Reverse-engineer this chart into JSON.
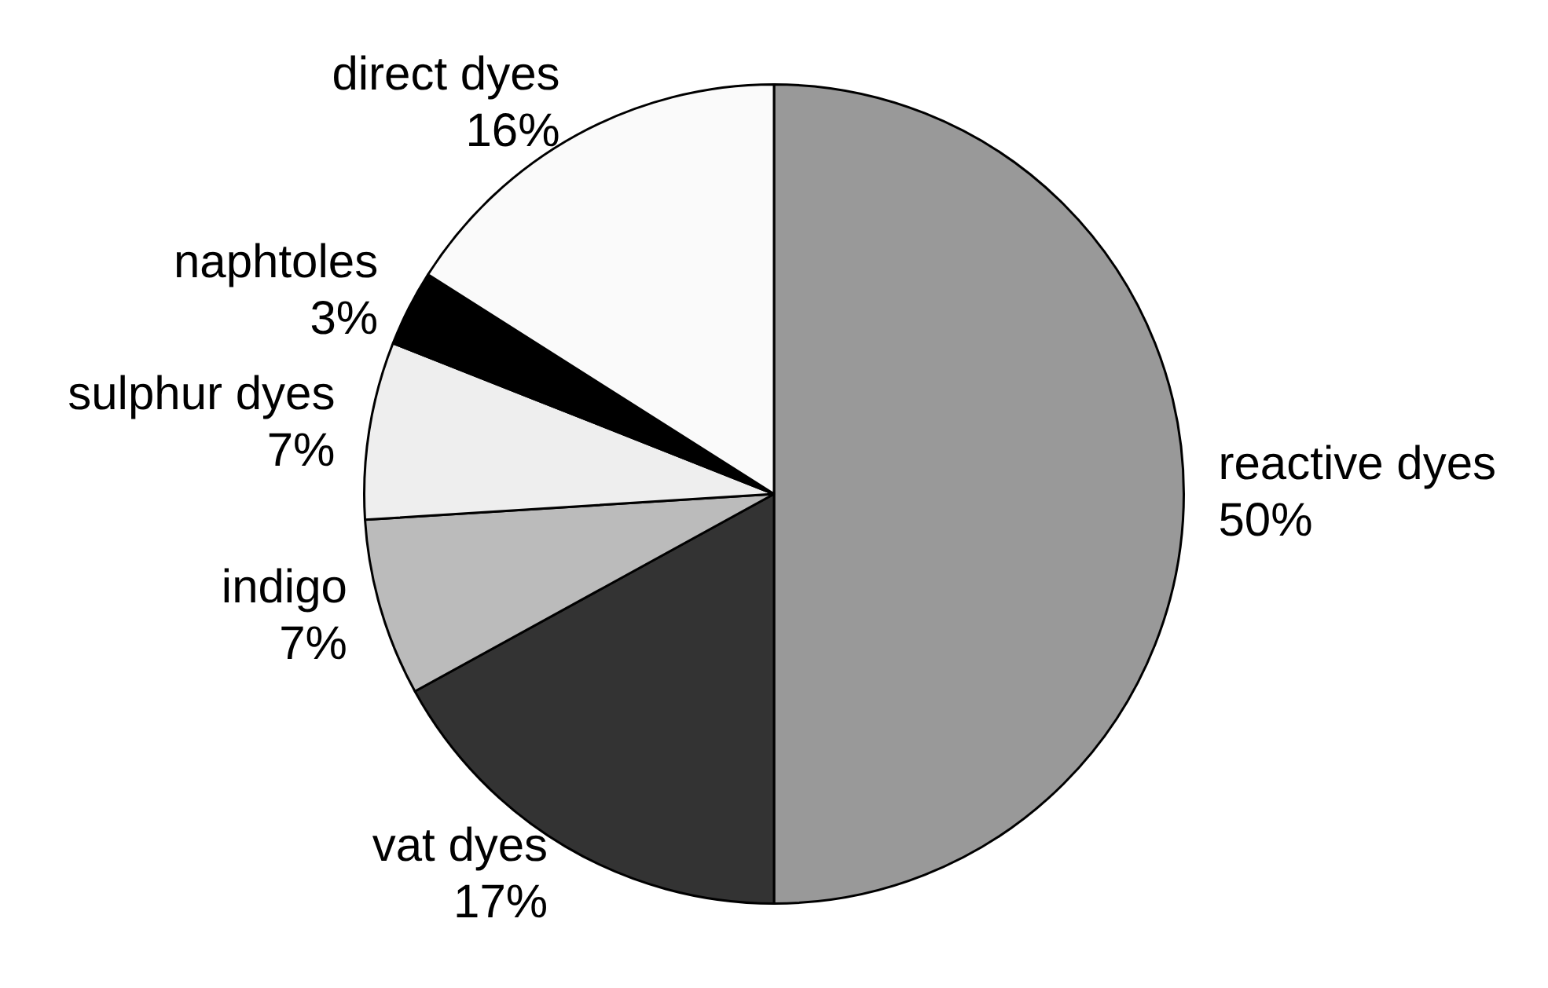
{
  "chart_data": {
    "type": "pie",
    "categories": [
      "reactive dyes",
      "vat dyes",
      "indigo",
      "sulphur dyes",
      "naphtoles",
      "direct dyes"
    ],
    "values": [
      50,
      17,
      7,
      7,
      3,
      16
    ],
    "value_labels": [
      "50%",
      "17%",
      "7%",
      "7%",
      "3%",
      "16%"
    ],
    "colors": [
      "#999999",
      "#333333",
      "#bbbbbb",
      "#eeeeee",
      "#000000",
      "#fafafa"
    ],
    "legend": false
  }
}
